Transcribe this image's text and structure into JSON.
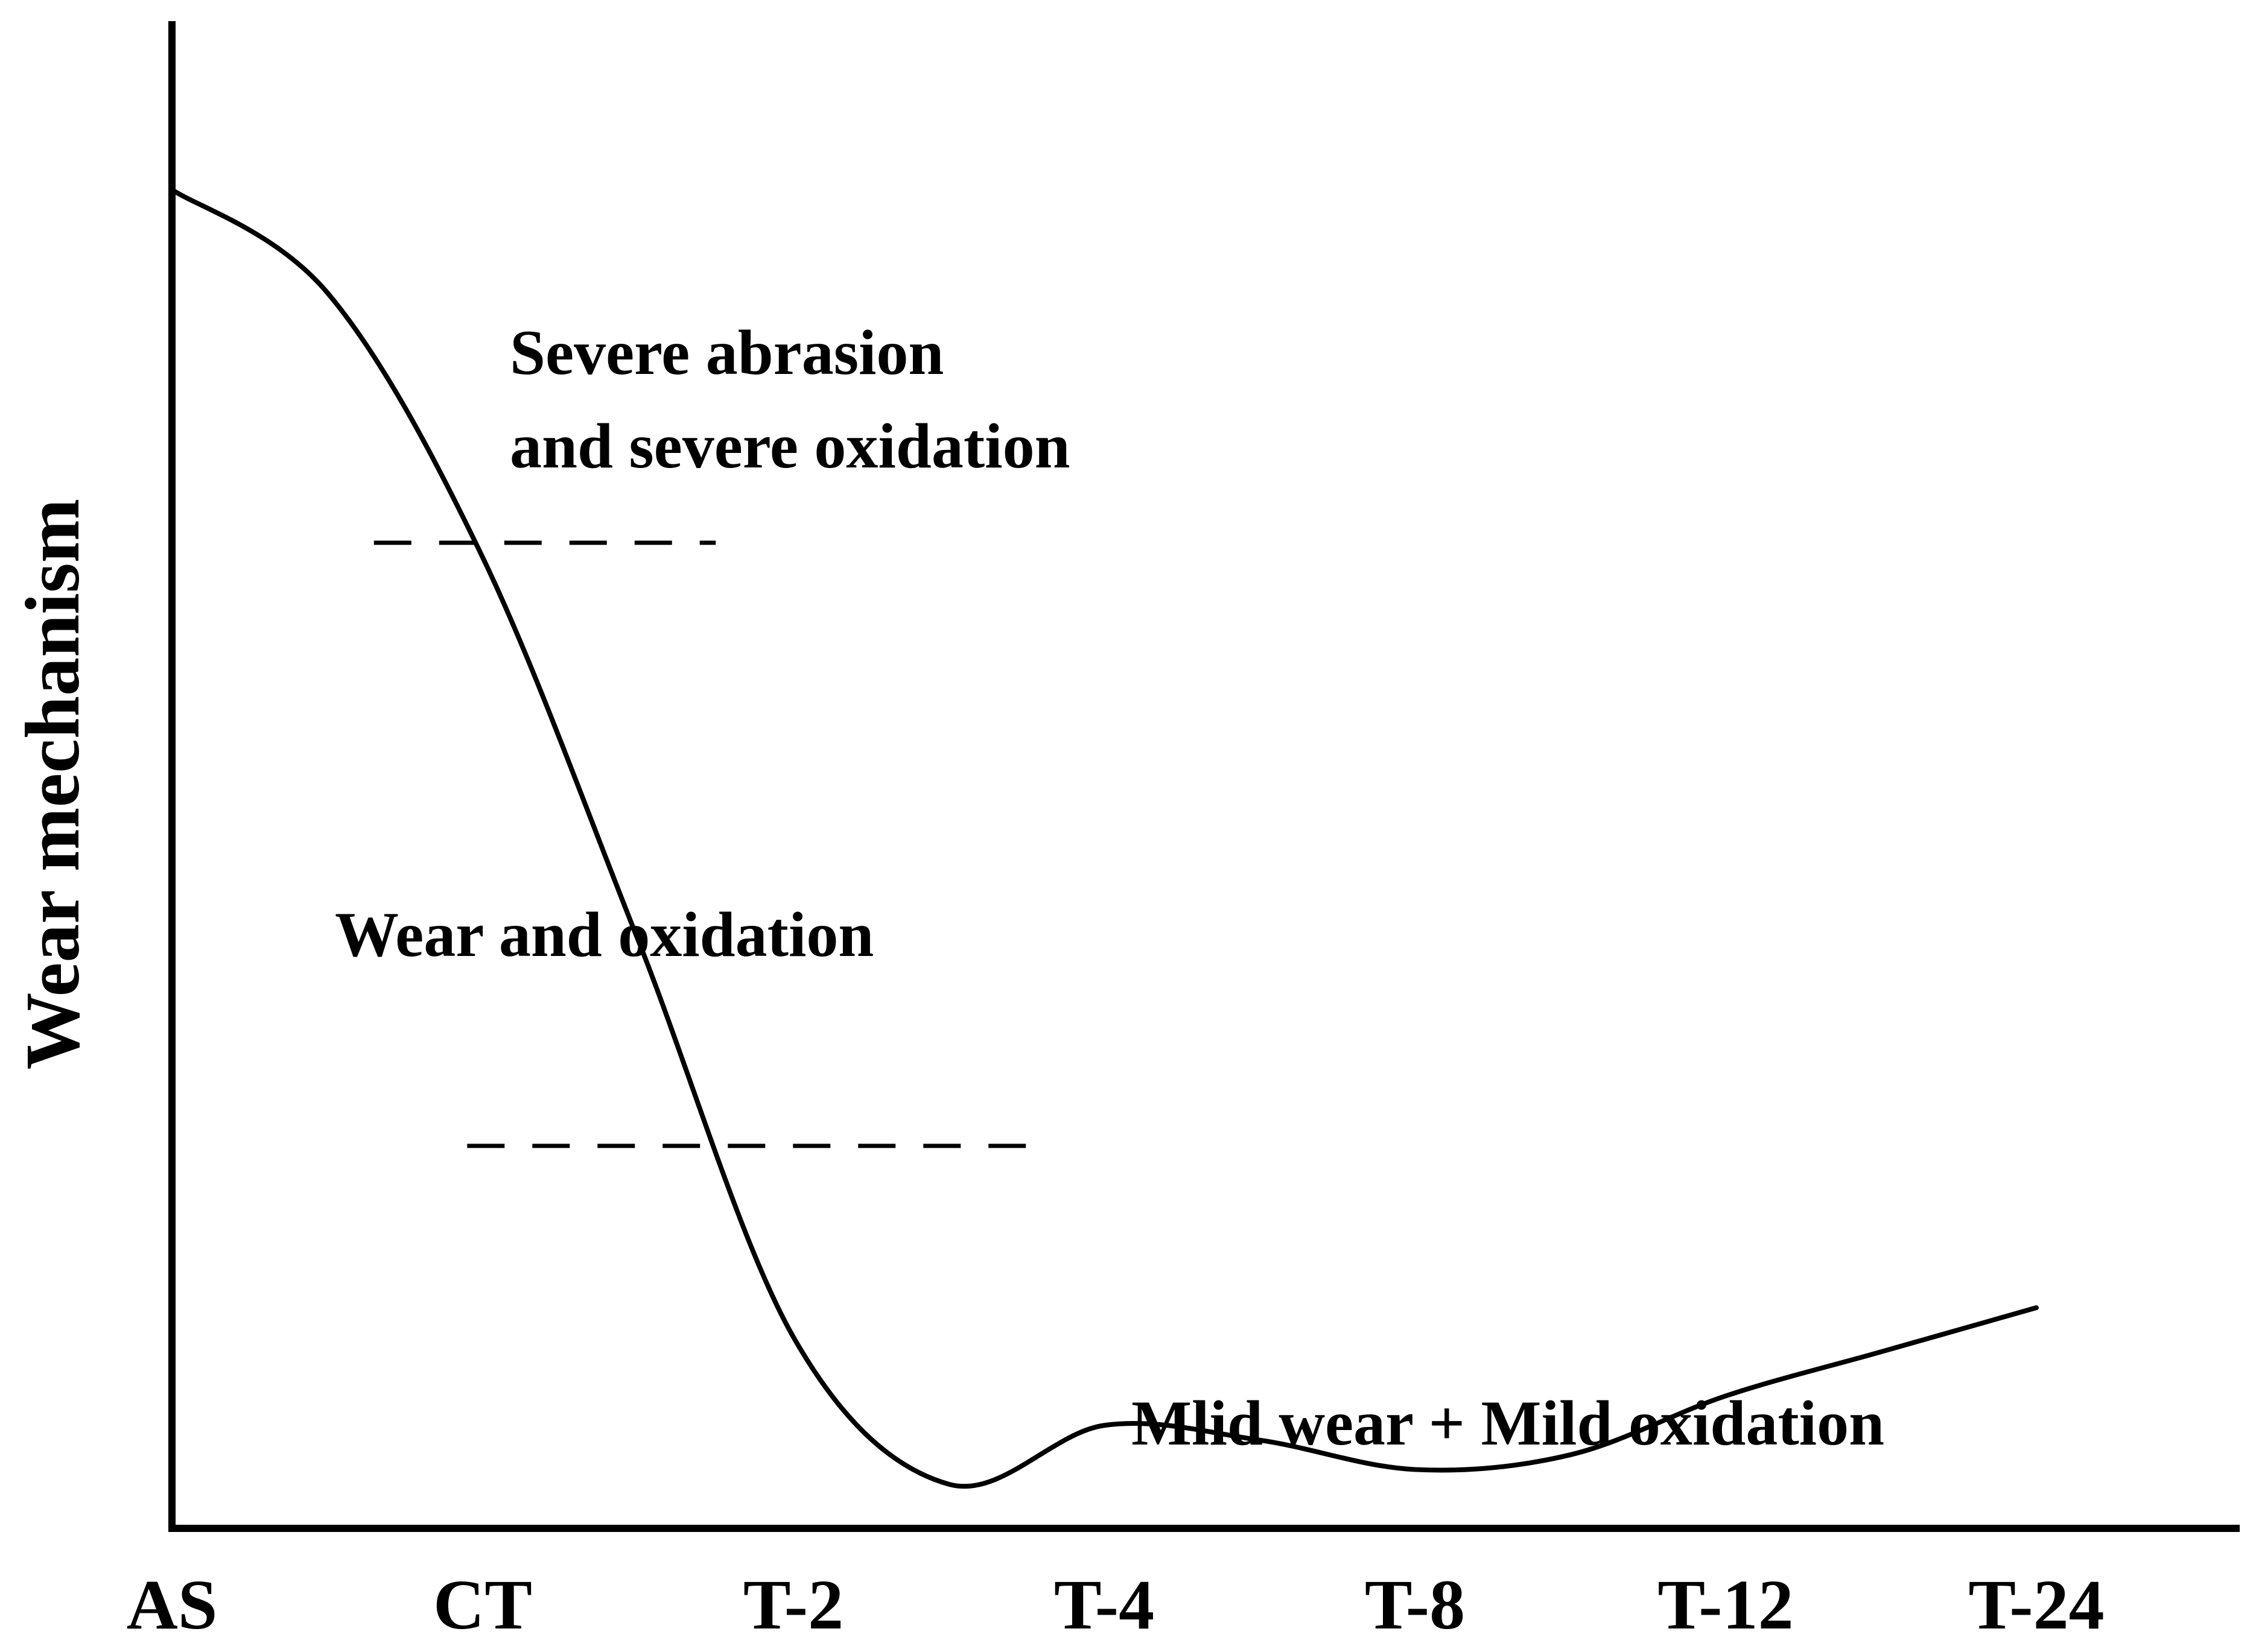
{
  "chart_data": {
    "type": "line",
    "title": "",
    "xlabel": "",
    "ylabel": "Wear mechanism",
    "categories": [
      "AS",
      "CT",
      "T-2",
      "T-4",
      "T-8",
      "T-12",
      "T-24"
    ],
    "x": [
      0,
      1,
      2,
      3,
      4,
      5,
      6
    ],
    "ylim": [
      0,
      100
    ],
    "grid": false,
    "legend": "none",
    "series": [
      {
        "name": "Wear mechanism",
        "x": [
          0,
          0.5,
          1.0,
          1.5,
          2.0,
          2.5,
          3.0,
          3.5,
          4.0,
          4.5,
          5.0,
          5.5,
          6.0
        ],
        "values": [
          91,
          84,
          66,
          40,
          13,
          3,
          7,
          6,
          4,
          5,
          9,
          12,
          15
        ]
      }
    ],
    "thresholds": [
      {
        "y": 67,
        "x_range": [
          0.65,
          1.75
        ],
        "style": "dashed"
      },
      {
        "y": 26,
        "x_range": [
          0.95,
          2.75
        ],
        "style": "dashed"
      }
    ],
    "annotations": [
      {
        "lines": [
          "Severe abrasion",
          "and severe oxidation"
        ]
      },
      {
        "lines": [
          "Wear and oxidation"
        ]
      },
      {
        "lines": [
          "Mlid wear + Mild oxidation"
        ]
      }
    ]
  },
  "colors": {
    "line": "#000000",
    "background": "#ffffff"
  }
}
